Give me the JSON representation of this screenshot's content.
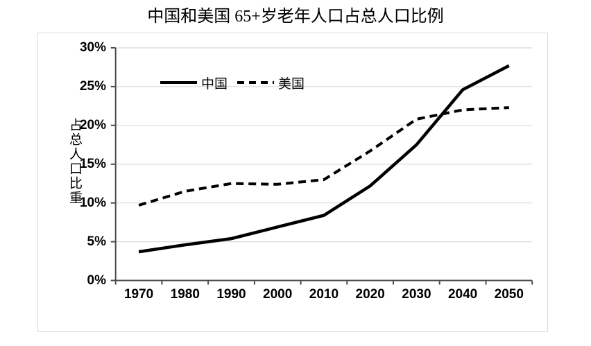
{
  "title": "中国和美国 65+岁老年人口占总人口比例",
  "chart_data": {
    "type": "line",
    "title": "中国和美国 65+岁老年人口占总人口比例",
    "categories": [
      "1970",
      "1980",
      "1990",
      "2000",
      "2010",
      "2020",
      "2030",
      "2040",
      "2050"
    ],
    "series": [
      {
        "name": "中国",
        "style": "solid",
        "color": "#000000",
        "values": [
          3.7,
          4.6,
          5.4,
          6.9,
          8.4,
          12.2,
          17.5,
          24.6,
          27.7
        ]
      },
      {
        "name": "美国",
        "style": "dashed",
        "color": "#000000",
        "values": [
          9.7,
          11.5,
          12.5,
          12.4,
          13.0,
          16.7,
          20.8,
          22.0,
          22.3
        ]
      }
    ],
    "xlabel": "",
    "ylabel": "占总人口比重",
    "y_ticks": [
      "0%",
      "5%",
      "10%",
      "15%",
      "20%",
      "25%",
      "30%"
    ],
    "ylim": [
      0,
      30
    ],
    "grid": true,
    "legend_position": "top-left-inside",
    "colors": {
      "line": "#000000",
      "grid": "#d9d9d9",
      "axis": "#4d4d4d",
      "border": "#d9d9d9"
    }
  }
}
